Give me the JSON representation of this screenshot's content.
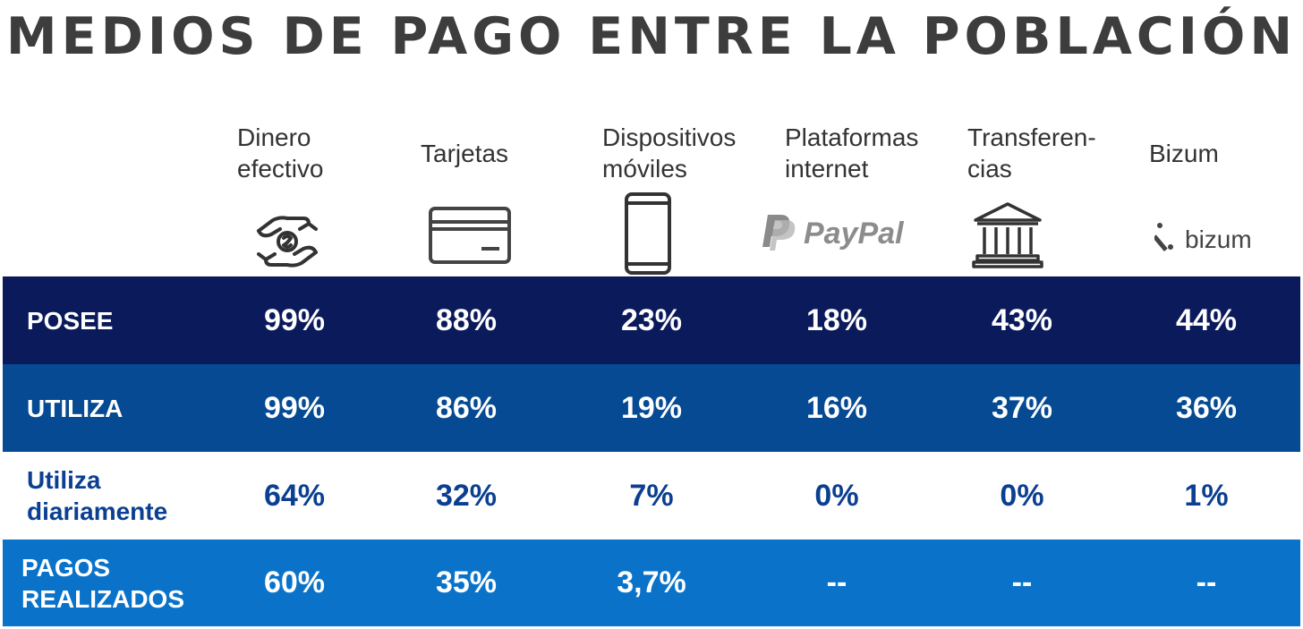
{
  "title": "MEDIOS DE PAGO ENTRE LA POBLACIÓN",
  "chart_data": {
    "type": "table",
    "columns": [
      {
        "label": "Dinero\nefectivo",
        "icon": "cash-hand-icon"
      },
      {
        "label": "Tarjetas",
        "icon": "credit-card-icon"
      },
      {
        "label": "Dispositivos\nmóviles",
        "icon": "smartphone-icon"
      },
      {
        "label": "Plataformas\ninternet",
        "icon": "paypal-logo-icon"
      },
      {
        "label": "Transferen-\ncias",
        "icon": "bank-icon"
      },
      {
        "label": "Bizum",
        "icon": "bizum-logo-icon"
      }
    ],
    "rows": [
      {
        "label": "POSEE",
        "values": [
          "99%",
          "88%",
          "23%",
          "18%",
          "43%",
          "44%"
        ]
      },
      {
        "label": "UTILIZA",
        "values": [
          "99%",
          "86%",
          "19%",
          "16%",
          "37%",
          "36%"
        ]
      },
      {
        "label": "Utiliza\ndiariamente",
        "values": [
          "64%",
          "32%",
          "7%",
          "0%",
          "0%",
          "1%"
        ]
      },
      {
        "label": "PAGOS\nREALIZADOS",
        "values": [
          "60%",
          "35%",
          "3,7%",
          "--",
          "--",
          "--"
        ]
      }
    ],
    "logos": {
      "paypal": "PayPal",
      "bizum": "bizum"
    },
    "colors": {
      "row1": "#0b1a5b",
      "row2": "#054a92",
      "row3": "#ffffff",
      "row4": "#0a73c9",
      "row3_text": "#0b3f91"
    }
  }
}
